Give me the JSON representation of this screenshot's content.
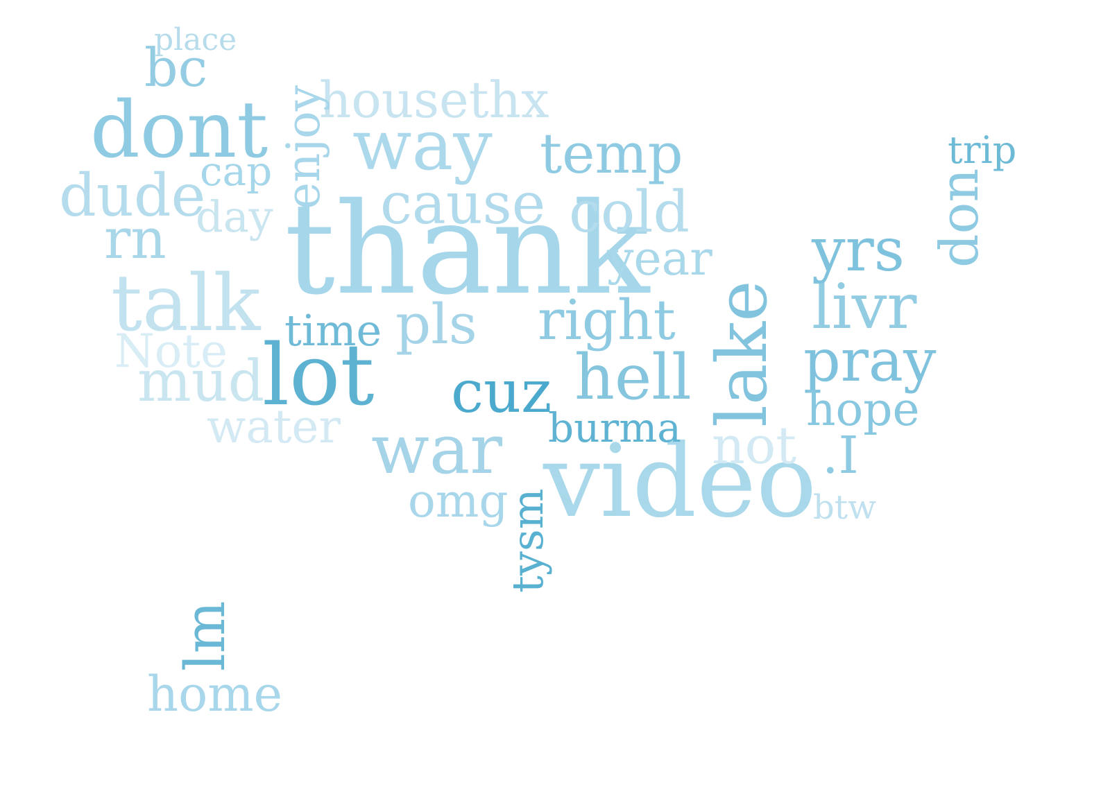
{
  "words": [
    {
      "text": "thank",
      "color": "#a6d6ea"
    },
    {
      "text": "video",
      "color": "#a9d8ea"
    },
    {
      "text": "lot",
      "color": "#5eb2d1"
    },
    {
      "text": "talk",
      "color": "#c2e2ef"
    },
    {
      "text": "dont",
      "color": "#8ecbe2"
    },
    {
      "text": "way",
      "color": "#acd8eb"
    },
    {
      "text": "war",
      "color": "#a5d4e8"
    },
    {
      "text": "lake",
      "color": "#82c4de"
    },
    {
      "text": "cause",
      "color": "#b1dbec"
    },
    {
      "text": "cold",
      "color": "#b4dcec"
    },
    {
      "text": "temp",
      "color": "#8ecbe2"
    },
    {
      "text": "right",
      "color": "#8ecbe2"
    },
    {
      "text": "pls",
      "color": "#a5d4e8"
    },
    {
      "text": "hell",
      "color": "#86c5de"
    },
    {
      "text": "cuz",
      "color": "#4aa9cc"
    },
    {
      "text": "livr",
      "color": "#92cce2"
    },
    {
      "text": "pray",
      "color": "#7fc2dd"
    },
    {
      "text": "yrs",
      "color": "#7fc2dd"
    },
    {
      "text": "year",
      "color": "#a9d8ea"
    },
    {
      "text": "dude",
      "color": "#b5dcec"
    },
    {
      "text": "rn",
      "color": "#a9d7ea"
    },
    {
      "text": "mud",
      "color": "#c8e5f0"
    },
    {
      "text": "Note",
      "color": "#d8edf5"
    },
    {
      "text": "water",
      "color": "#d3eaf4"
    },
    {
      "text": "time",
      "color": "#6fbad7"
    },
    {
      "text": "burma",
      "color": "#5fb3d2"
    },
    {
      "text": "hope",
      "color": "#87c7e0"
    },
    {
      "text": "not",
      "color": "#d3eaf4"
    },
    {
      "text": ".I",
      "color": "#8ecbe2"
    },
    {
      "text": "btw",
      "color": "#bfe0ee"
    },
    {
      "text": "omg",
      "color": "#a8d6ea"
    },
    {
      "text": "tysm",
      "color": "#59b1d1"
    },
    {
      "text": "day",
      "color": "#c9e5f0"
    },
    {
      "text": "cap",
      "color": "#a6d6ea"
    },
    {
      "text": "housethx",
      "color": "#c7e4f0"
    },
    {
      "text": "bc",
      "color": "#94cde3"
    },
    {
      "text": "place",
      "color": "#b6dcec"
    },
    {
      "text": "enjoy",
      "color": "#a8d6ea"
    },
    {
      "text": "don",
      "color": "#8ecbe2"
    },
    {
      "text": "trip",
      "color": "#6dbad7"
    },
    {
      "text": "lm",
      "color": "#6ab8d6"
    },
    {
      "text": "home",
      "color": "#a8d6ea"
    }
  ]
}
